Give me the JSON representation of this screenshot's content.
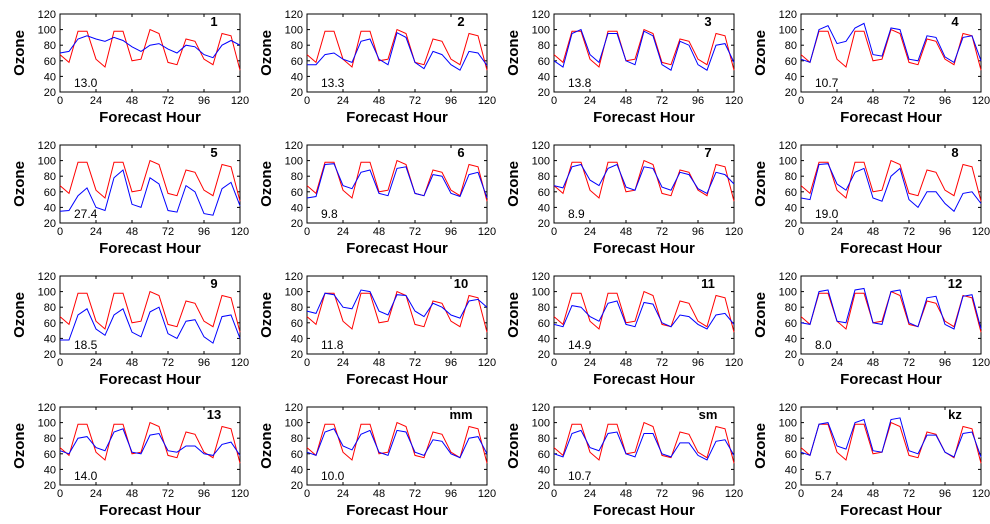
{
  "colors": {
    "observed": "#ff0000",
    "forecast": "#0000ff",
    "axes": "#000000"
  },
  "chart_data": {
    "type": "line",
    "xlabel": "Forecast Hour",
    "ylabel": "Ozone",
    "xlim": [
      0,
      120
    ],
    "ylim": [
      20,
      120
    ],
    "xticks": [
      0,
      24,
      48,
      72,
      96,
      120
    ],
    "yticks": [
      20,
      40,
      60,
      80,
      100,
      120
    ],
    "grid": false,
    "x": [
      0,
      6,
      12,
      18,
      24,
      30,
      36,
      42,
      48,
      54,
      60,
      66,
      72,
      78,
      84,
      90,
      96,
      102,
      108,
      114,
      120
    ],
    "observed": [
      68,
      58,
      98,
      98,
      62,
      52,
      98,
      98,
      60,
      62,
      100,
      95,
      58,
      55,
      88,
      85,
      62,
      55,
      95,
      92,
      48
    ],
    "panels": [
      {
        "label": "1",
        "error": "13.0",
        "forecast": [
          70,
          72,
          88,
          92,
          88,
          85,
          90,
          86,
          78,
          72,
          80,
          82,
          75,
          70,
          80,
          78,
          68,
          64,
          80,
          86,
          80
        ]
      },
      {
        "label": "2",
        "error": "13.3",
        "forecast": [
          55,
          55,
          68,
          70,
          62,
          58,
          85,
          88,
          62,
          55,
          96,
          90,
          58,
          50,
          72,
          68,
          55,
          48,
          72,
          70,
          54
        ]
      },
      {
        "label": "3",
        "error": "13.8",
        "forecast": [
          60,
          52,
          95,
          100,
          68,
          58,
          95,
          95,
          60,
          55,
          98,
          92,
          55,
          48,
          85,
          80,
          55,
          48,
          80,
          82,
          58
        ]
      },
      {
        "label": "4",
        "error": "10.7",
        "forecast": [
          62,
          58,
          100,
          105,
          82,
          85,
          102,
          108,
          68,
          66,
          102,
          100,
          62,
          60,
          92,
          90,
          65,
          58,
          90,
          92,
          60
        ]
      },
      {
        "label": "5",
        "error": "27.4",
        "forecast": [
          35,
          36,
          55,
          65,
          40,
          36,
          78,
          88,
          44,
          40,
          78,
          70,
          36,
          34,
          68,
          60,
          32,
          30,
          64,
          72,
          42
        ]
      },
      {
        "label": "6",
        "error": "9.8",
        "forecast": [
          52,
          54,
          95,
          96,
          68,
          64,
          85,
          88,
          58,
          55,
          90,
          92,
          58,
          55,
          82,
          80,
          58,
          54,
          82,
          85,
          52
        ]
      },
      {
        "label": "7",
        "error": "8.9",
        "forecast": [
          68,
          65,
          92,
          95,
          75,
          68,
          90,
          95,
          66,
          62,
          92,
          90,
          66,
          62,
          85,
          82,
          64,
          58,
          85,
          82,
          70
        ]
      },
      {
        "label": "8",
        "error": "19.0",
        "forecast": [
          52,
          50,
          95,
          96,
          70,
          62,
          85,
          90,
          52,
          48,
          80,
          90,
          50,
          40,
          60,
          60,
          45,
          35,
          58,
          60,
          45
        ]
      },
      {
        "label": "9",
        "error": "18.5",
        "forecast": [
          38,
          38,
          70,
          78,
          52,
          44,
          70,
          78,
          48,
          42,
          74,
          80,
          46,
          40,
          62,
          64,
          42,
          34,
          68,
          70,
          40
        ]
      },
      {
        "label": "10",
        "error": "11.8",
        "forecast": [
          75,
          72,
          98,
          96,
          80,
          78,
          102,
          100,
          75,
          70,
          96,
          95,
          75,
          68,
          85,
          80,
          70,
          66,
          88,
          90,
          80
        ]
      },
      {
        "label": "11",
        "error": "14.9",
        "forecast": [
          58,
          55,
          82,
          80,
          68,
          62,
          85,
          88,
          58,
          55,
          86,
          84,
          60,
          55,
          70,
          68,
          58,
          52,
          70,
          72,
          58
        ]
      },
      {
        "label": "12",
        "error": "8.0",
        "forecast": [
          60,
          58,
          100,
          102,
          62,
          60,
          102,
          104,
          60,
          58,
          100,
          102,
          60,
          55,
          92,
          94,
          58,
          52,
          94,
          96,
          52
        ]
      },
      {
        "label": "13",
        "error": "14.0",
        "forecast": [
          64,
          60,
          80,
          82,
          68,
          64,
          88,
          92,
          62,
          60,
          84,
          86,
          64,
          62,
          70,
          70,
          60,
          58,
          72,
          75,
          58
        ]
      },
      {
        "label": "mm",
        "error": "10.0",
        "forecast": [
          62,
          58,
          88,
          92,
          70,
          65,
          85,
          90,
          62,
          58,
          90,
          88,
          62,
          58,
          78,
          76,
          60,
          55,
          80,
          82,
          60
        ]
      },
      {
        "label": "sm",
        "error": "10.7",
        "forecast": [
          60,
          56,
          86,
          90,
          68,
          64,
          86,
          88,
          60,
          56,
          86,
          86,
          60,
          56,
          74,
          74,
          58,
          52,
          76,
          78,
          58
        ]
      },
      {
        "label": "kz",
        "error": "5.7",
        "forecast": [
          62,
          58,
          98,
          100,
          70,
          66,
          100,
          104,
          64,
          62,
          104,
          106,
          64,
          60,
          84,
          84,
          62,
          56,
          86,
          88,
          56
        ]
      }
    ]
  }
}
